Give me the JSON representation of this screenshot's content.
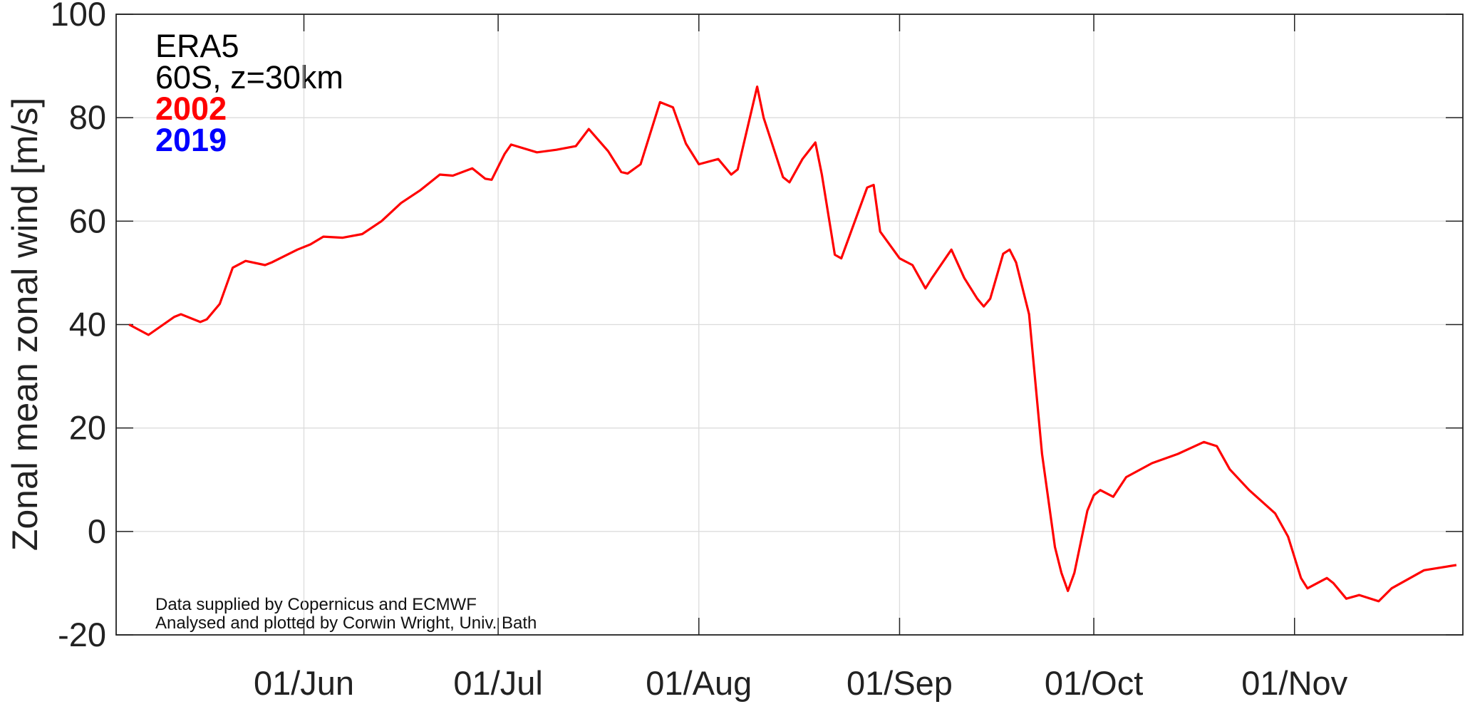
{
  "chart_data": {
    "type": "line",
    "y_label": "Zonal mean zonal wind [m/s]",
    "annotations": [
      "ERA5",
      "60S, z=30km"
    ],
    "footnotes": [
      "Data supplied by Copernicus and ECMWF",
      "Analysed and plotted by Corwin Wright, Univ. Bath"
    ],
    "x": [
      "05/May",
      "08/May",
      "12/May",
      "13/May",
      "16/May",
      "17/May",
      "19/May",
      "21/May",
      "23/May",
      "26/May",
      "27/May",
      "31/May",
      "02/Jun",
      "04/Jun",
      "07/Jun",
      "10/Jun",
      "13/Jun",
      "16/Jun",
      "19/Jun",
      "22/Jun",
      "24/Jun",
      "27/Jun",
      "29/Jun",
      "30/Jun",
      "02/Jul",
      "03/Jul",
      "07/Jul",
      "10/Jul",
      "13/Jul",
      "15/Jul",
      "18/Jul",
      "20/Jul",
      "21/Jul",
      "23/Jul",
      "26/Jul",
      "28/Jul",
      "30/Jul",
      "01/Aug",
      "04/Aug",
      "06/Aug",
      "07/Aug",
      "10/Aug",
      "11/Aug",
      "14/Aug",
      "15/Aug",
      "17/Aug",
      "19/Aug",
      "20/Aug",
      "22/Aug",
      "23/Aug",
      "27/Aug",
      "28/Aug",
      "29/Aug",
      "01/Sep",
      "03/Sep",
      "05/Sep",
      "06/Sep",
      "09/Sep",
      "11/Sep",
      "13/Sep",
      "14/Sep",
      "15/Sep",
      "17/Sep",
      "18/Sep",
      "19/Sep",
      "21/Sep",
      "23/Sep",
      "25/Sep",
      "26/Sep",
      "27/Sep",
      "28/Sep",
      "30/Sep",
      "01/Oct",
      "02/Oct",
      "04/Oct",
      "06/Oct",
      "10/Oct",
      "14/Oct",
      "18/Oct",
      "20/Oct",
      "22/Oct",
      "25/Oct",
      "29/Oct",
      "31/Oct",
      "02/Nov",
      "03/Nov",
      "06/Nov",
      "07/Nov",
      "09/Nov",
      "11/Nov",
      "14/Nov",
      "16/Nov",
      "21/Nov",
      "26/Nov"
    ],
    "series": [
      {
        "name": "2002",
        "color": "#ff0000",
        "values": [
          40,
          38,
          41.5,
          42,
          40.5,
          41,
          44,
          51,
          52.3,
          51.5,
          52,
          54.5,
          55.5,
          57,
          56.8,
          57.5,
          60,
          63.5,
          66,
          69,
          68.8,
          70.2,
          68.2,
          68,
          73,
          74.8,
          73.3,
          73.8,
          74.5,
          77.8,
          73.5,
          69.5,
          69.2,
          71,
          83,
          82,
          75,
          71,
          72,
          69,
          70,
          86,
          80,
          68.5,
          67.5,
          72,
          75.2,
          69,
          53.5,
          52.8,
          66.5,
          67,
          58,
          52.8,
          51.5,
          47,
          49,
          54.5,
          49,
          45,
          43.5,
          45,
          53.7,
          54.5,
          52,
          42,
          15,
          -3,
          -8,
          -11.5,
          -8,
          4,
          7,
          8,
          6.7,
          10.5,
          13.2,
          15,
          17.3,
          16.5,
          12,
          8,
          3.5,
          -1,
          -9,
          -11,
          -9,
          -10,
          -13,
          -12.3,
          -13.5,
          -11,
          -7.5,
          -6.5
        ]
      },
      {
        "name": "2019",
        "color": "#0000ff",
        "values": [
          null,
          null,
          null,
          null,
          null,
          null,
          null,
          null,
          null,
          null,
          null,
          null,
          null,
          null,
          null,
          null,
          null,
          null,
          null,
          null,
          null,
          null,
          null,
          null,
          null,
          null,
          null,
          null,
          null,
          null,
          null,
          null,
          null,
          null,
          null,
          null,
          null,
          null,
          null,
          null,
          null,
          null,
          null,
          null,
          null,
          null,
          null,
          null,
          null,
          null,
          null,
          null,
          null,
          null,
          null,
          null,
          null,
          null,
          null,
          null,
          null,
          null,
          null,
          null,
          null,
          null,
          null,
          null,
          null,
          null,
          null,
          null,
          null,
          null,
          null,
          null,
          null,
          null,
          null,
          null,
          null,
          null,
          null,
          null,
          null,
          null,
          null,
          null,
          null,
          null,
          null,
          null,
          null,
          null
        ]
      }
    ],
    "xlim": [
      "03/May",
      "27/Nov"
    ],
    "xticks": [
      "01/Jun",
      "01/Jul",
      "01/Aug",
      "01/Sep",
      "01/Oct",
      "01/Nov"
    ],
    "ylim": [
      -20,
      100
    ],
    "yticks": [
      -20,
      0,
      20,
      40,
      60,
      80,
      100
    ],
    "grid": true
  }
}
